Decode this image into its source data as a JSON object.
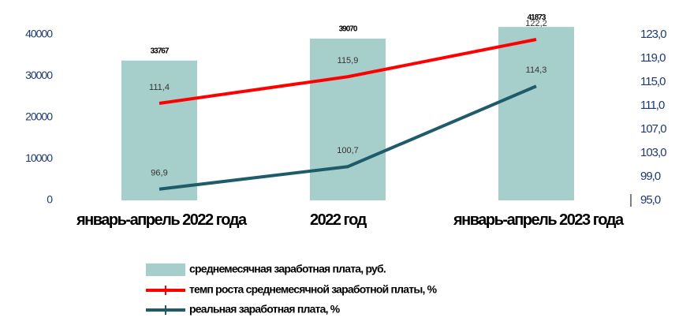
{
  "chart_data": {
    "type": "bar_line",
    "categories": [
      "январь-апрель 2022 года",
      "2022 год",
      "январь-апрель 2023 года"
    ],
    "ylim": [
      0,
      40000
    ],
    "yticks": [
      0,
      10000,
      20000,
      30000,
      40000
    ],
    "y2lim": [
      95,
      123
    ],
    "y2ticks": [
      {
        "value": 95,
        "label": "95,0"
      },
      {
        "value": 99,
        "label": "99,0"
      },
      {
        "value": 103,
        "label": "103,0"
      },
      {
        "value": 107,
        "label": "107,0"
      },
      {
        "value": 111,
        "label": "111,0"
      },
      {
        "value": 115,
        "label": "115,0"
      },
      {
        "value": 119,
        "label": "119,0"
      },
      {
        "value": 123,
        "label": "123,0"
      }
    ],
    "series": [
      {
        "name": "среднемесячная заработная плата, руб.",
        "type": "bar",
        "color": "#a6cfcb",
        "values": [
          33767,
          39070,
          41873
        ]
      },
      {
        "name": "темп роста среднемесячной заработной платы, %",
        "type": "line",
        "axis": "y2",
        "color": "#ff0000",
        "values": [
          111.4,
          115.9,
          122.2
        ],
        "value_labels": [
          "111,4",
          "115,9",
          "122,2"
        ]
      },
      {
        "name": "реальная заработная плата, %",
        "type": "line",
        "axis": "y2",
        "color": "#1f5c6b",
        "values": [
          96.9,
          100.7,
          114.3
        ],
        "value_labels": [
          "96,9",
          "100,7",
          "114,3"
        ]
      }
    ]
  }
}
